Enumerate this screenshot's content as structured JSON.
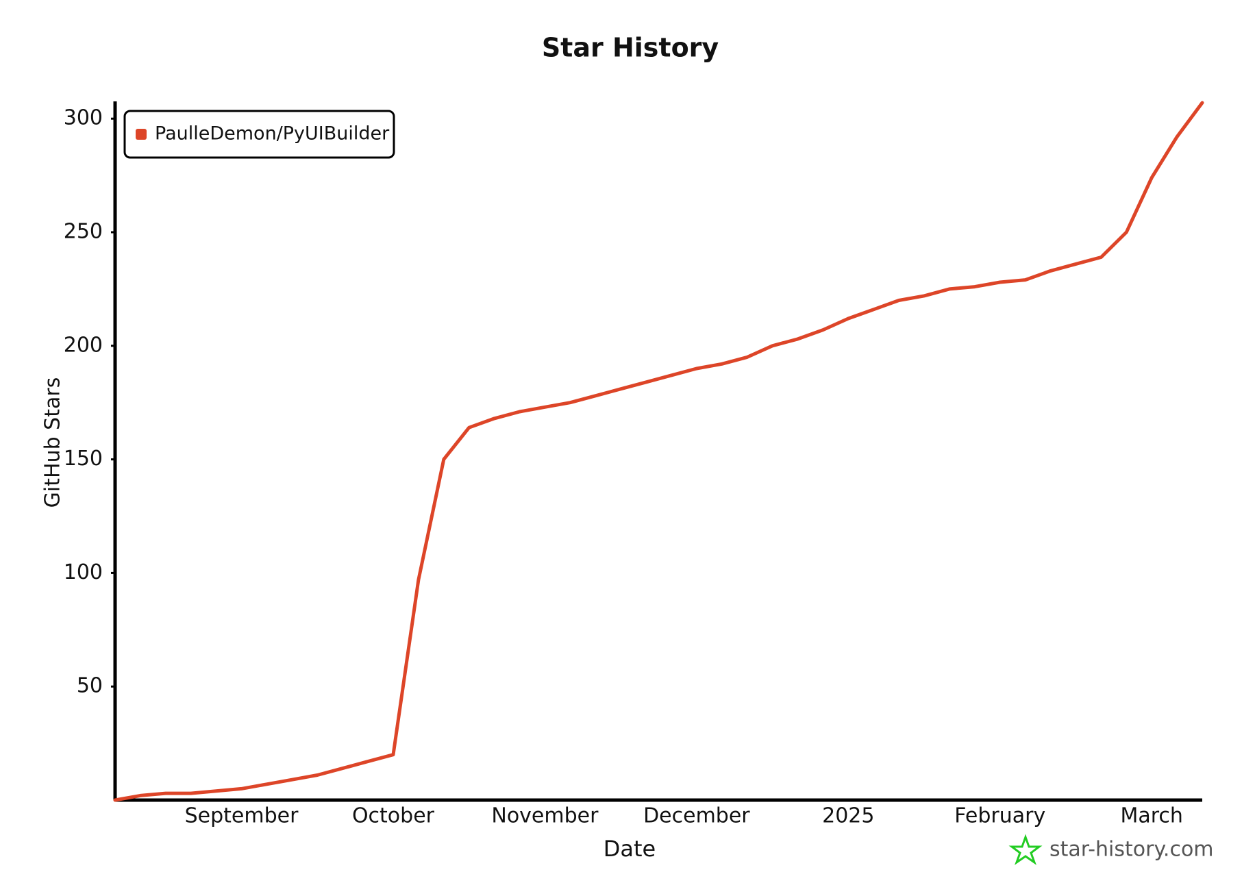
{
  "chart_data": {
    "type": "line",
    "title": "Star History",
    "xlabel": "Date",
    "ylabel": "GitHub Stars",
    "watermark": "star-history.com",
    "categories": [
      null,
      null,
      null,
      null,
      null,
      "September",
      null,
      null,
      null,
      null,
      null,
      "October",
      null,
      null,
      null,
      null,
      null,
      "November",
      null,
      null,
      null,
      null,
      null,
      "December",
      null,
      null,
      null,
      null,
      null,
      "2025",
      null,
      null,
      null,
      null,
      null,
      "February",
      null,
      null,
      null,
      null,
      null,
      "March",
      null,
      null
    ],
    "series": [
      {
        "name": "PaulleDemon/PyUIBuilder",
        "color": "#dd4528",
        "values": [
          0,
          2,
          3,
          3,
          4,
          5,
          7,
          9,
          11,
          14,
          17,
          20,
          97,
          150,
          164,
          168,
          171,
          173,
          175,
          178,
          181,
          184,
          187,
          190,
          192,
          195,
          200,
          203,
          207,
          212,
          216,
          220,
          222,
          225,
          226,
          228,
          229,
          233,
          236,
          239,
          250,
          274,
          292,
          307
        ]
      }
    ],
    "ylim": [
      0,
      307
    ],
    "yticks": [
      50,
      100,
      150,
      200,
      250,
      300
    ],
    "legend": "upper left"
  }
}
